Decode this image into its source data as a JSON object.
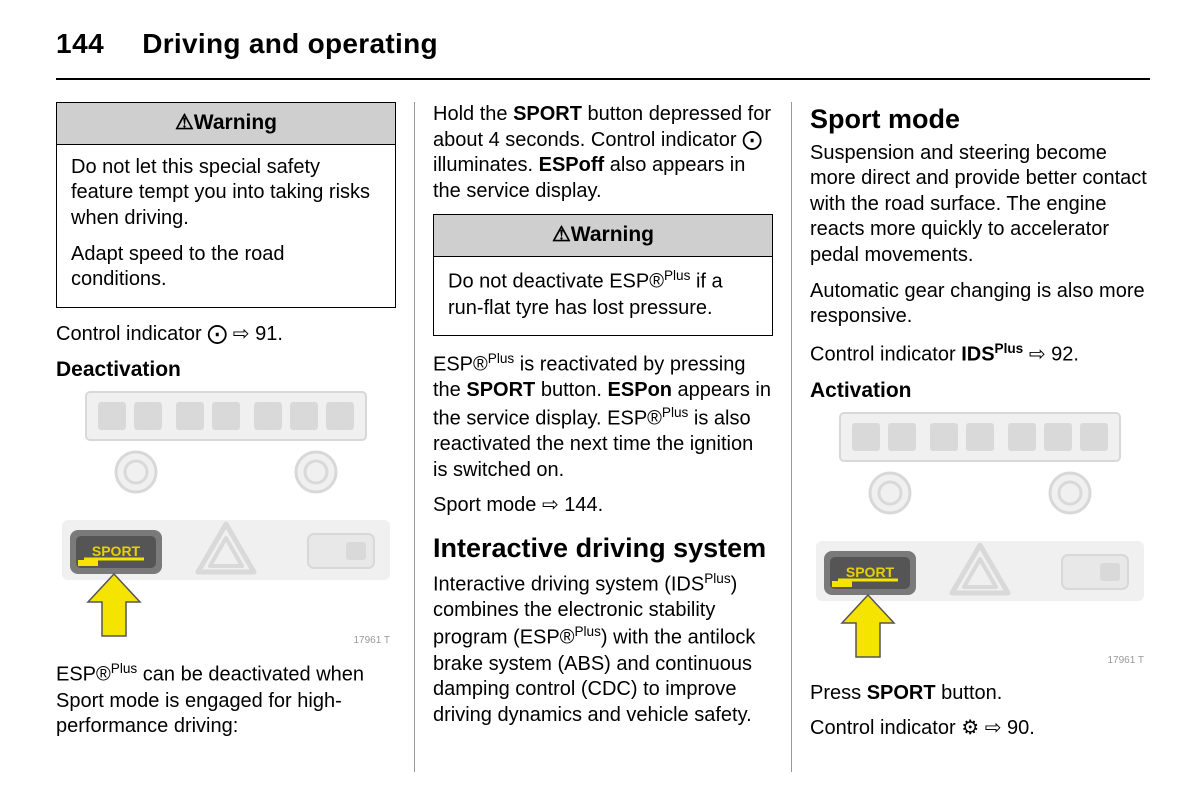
{
  "header": {
    "page_number": "144",
    "title": "Driving and operating"
  },
  "symbols": {
    "esp": "⨀",
    "arrow": "⇨",
    "ids": "⚙"
  },
  "col1": {
    "warn": {
      "head_prefix": "⚠",
      "head": "Warning",
      "p1": "Do not let this special safety feature tempt you into taking risks when driving.",
      "p2": "Adapt speed to the road conditions."
    },
    "ci_line_a": "Control indicator ",
    "ci_line_b": " 91.",
    "deact_head": "Deactivation",
    "image_code": "17961 T",
    "esp_line_a": "ESP®",
    "esp_line_sup": "Plus",
    "esp_line_b": " can be deactivated when Sport mode is engaged for high-performance driving:"
  },
  "col2": {
    "hold_a": "Hold the ",
    "hold_b": "SPORT",
    "hold_c": " button depressed for about 4 seconds. Control indicator ",
    "hold_d": " illuminates. ",
    "hold_e": "ESPoff",
    "hold_f": " also appears in the service display.",
    "warn": {
      "head_prefix": "⚠",
      "head": "Warning",
      "p1a": "Do not deactivate ESP®",
      "p1sup": "Plus",
      "p1b": " if a run-flat tyre has lost pressure."
    },
    "react_a": "ESP®",
    "react_sup": "Plus",
    "react_b": " is reactivated by pressing the ",
    "react_c": "SPORT",
    "react_d": " button. ",
    "react_e": "ESPon",
    "react_f": " appears in the service display. ESP®",
    "react_sup2": "Plus",
    "react_g": " is also reactivated the next time the ignition is switched on.",
    "sport_a": "Sport mode ",
    "sport_b": " 144.",
    "ids_head": "Interactive driving system",
    "ids_body_a": "Interactive driving system (IDS",
    "ids_body_sup": "Plus",
    "ids_body_b": ") combines the electronic stability program (ESP®",
    "ids_body_sup2": "Plus",
    "ids_body_c": ") with the antilock brake system (ABS) and continuous damping control (CDC) to improve driving dynamics and vehicle safety."
  },
  "col3": {
    "sport_head": "Sport mode",
    "p1": "Suspension and steering become more direct and provide better contact with the road surface. The engine reacts more quickly to accelerator pedal movements.",
    "p2": "Automatic gear changing is also more responsive.",
    "ci_a": "Control indicator ",
    "ci_b": "IDS",
    "ci_sup": "Plus",
    "ci_c": " 92.",
    "act_head": "Activation",
    "image_code": "17961 T",
    "press_a": "Press ",
    "press_b": "SPORT",
    "press_c": " button.",
    "ci2_a": "Control indicator ",
    "ci2_b": " 90."
  },
  "illustration": {
    "sport_label": "SPORT",
    "colors": {
      "panel": "#f0f0f0",
      "light_border": "#d8d8d8",
      "display_glass": "#f7f7f7",
      "display_segments": "#d9d9d9",
      "button_dark": "#7a7a7a",
      "button_face": "#555",
      "button_light": "#e8e8e8",
      "sport_yellow": "#f5e400",
      "sport_text": "#e6d200",
      "arrow_yellow": "#f5e400",
      "arrow_stroke": "#555"
    }
  }
}
